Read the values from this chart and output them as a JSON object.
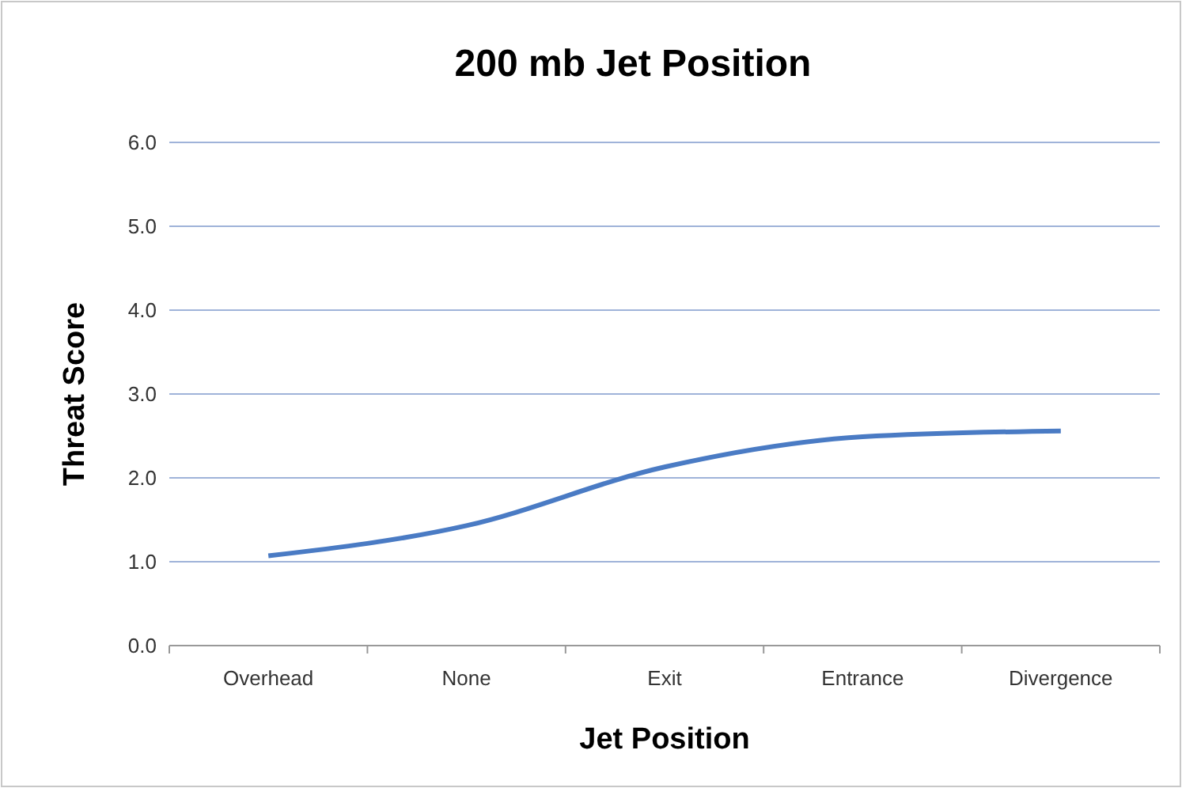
{
  "chart_data": {
    "type": "line",
    "title": "200 mb Jet Position",
    "xlabel": "Jet Position",
    "ylabel": "Threat Score",
    "categories": [
      "Overhead",
      "None",
      "Exit",
      "Entrance",
      "Divergence"
    ],
    "series": [
      {
        "color": "#4a7bc4",
        "values": [
          1.07,
          1.43,
          2.13,
          2.49,
          2.56
        ]
      }
    ],
    "ylim": [
      0,
      6
    ],
    "yticks": [
      {
        "value": 0,
        "label": "0.0"
      },
      {
        "value": 1,
        "label": "1.0"
      },
      {
        "value": 2,
        "label": "2.0"
      },
      {
        "value": 3,
        "label": "3.0"
      },
      {
        "value": 4,
        "label": "4.0"
      },
      {
        "value": 5,
        "label": "5.0"
      },
      {
        "value": 6,
        "label": "6.0"
      }
    ],
    "grid": "y",
    "marker": "none",
    "line_style": "solid"
  }
}
